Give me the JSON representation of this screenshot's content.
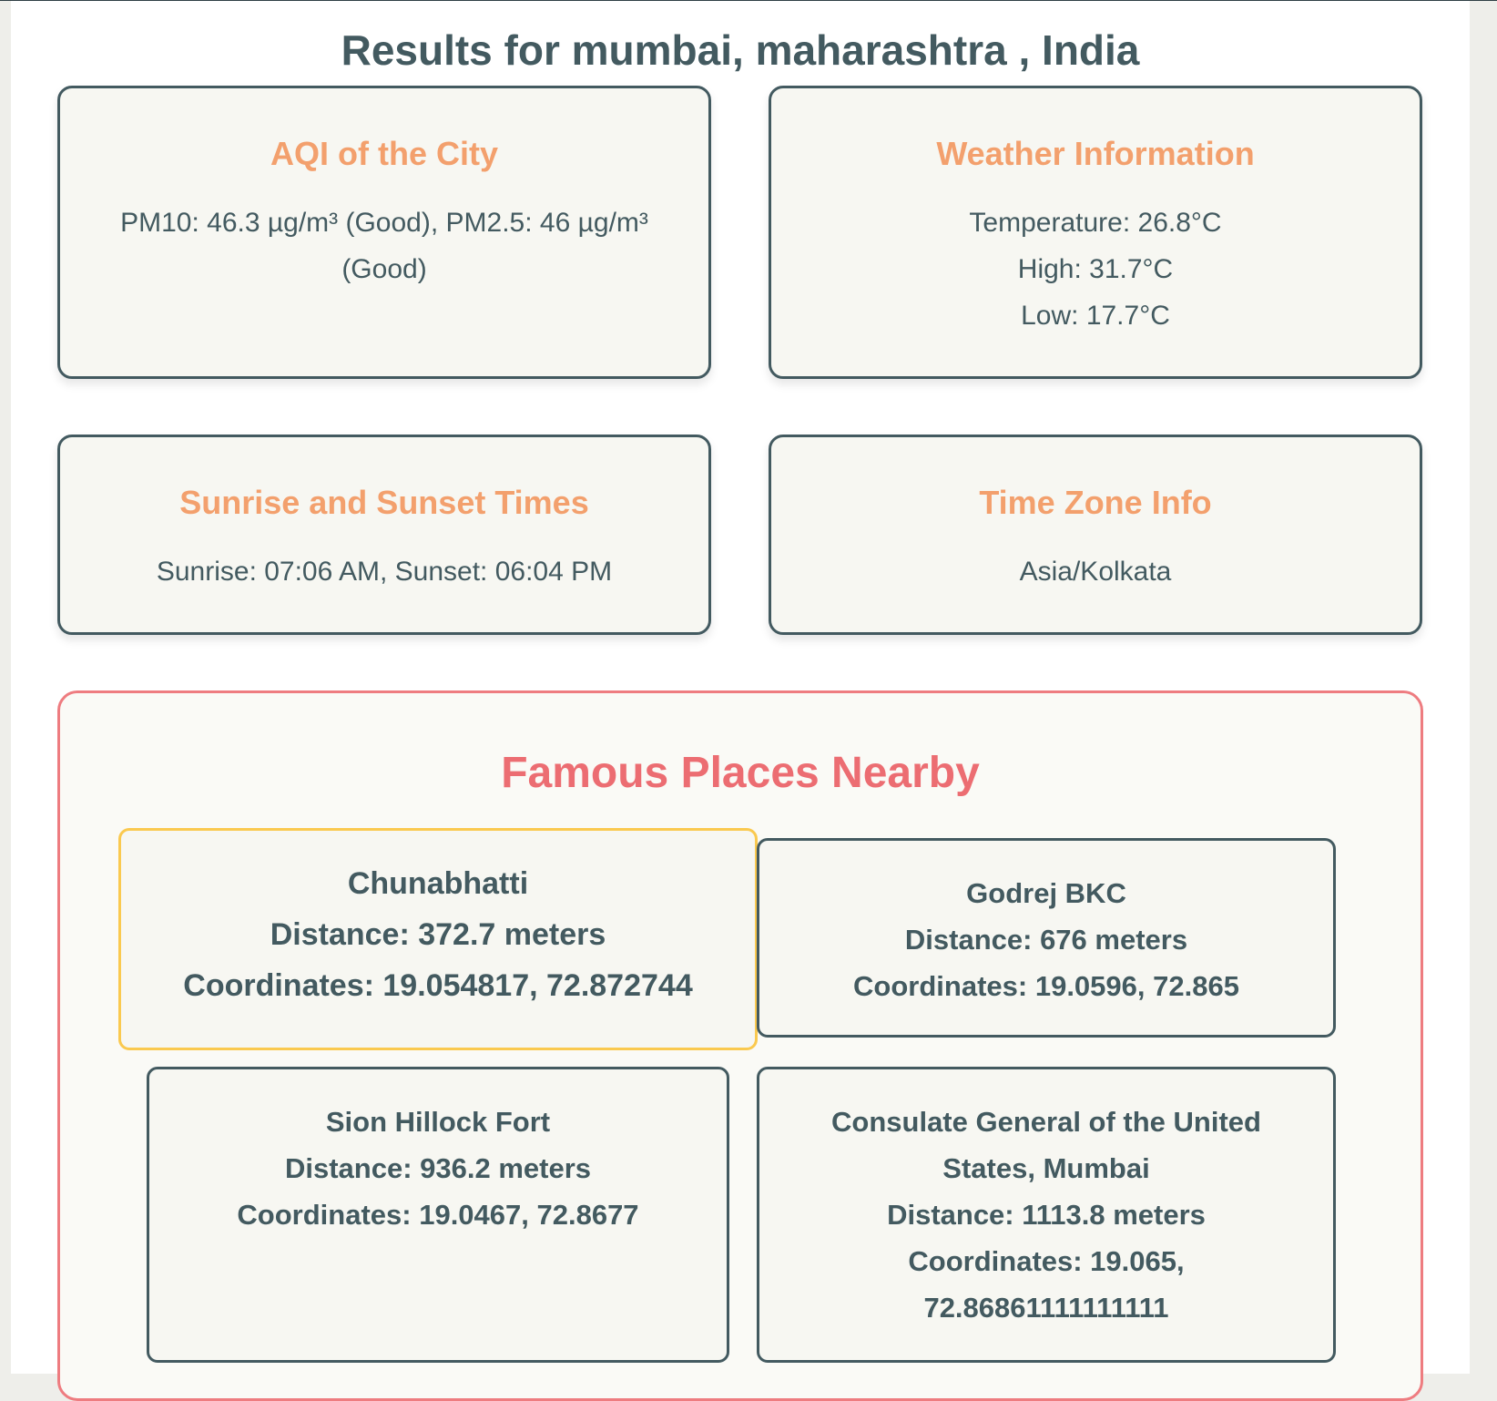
{
  "title": "Results for mumbai, maharashtra , India",
  "aqi": {
    "heading": "AQI of the City",
    "text": "PM10: 46.3 µg/m³ (Good), PM2.5: 46 µg/m³ (Good)"
  },
  "weather": {
    "heading": "Weather Information",
    "temperature": "Temperature: 26.8°C",
    "high": "High: 31.7°C",
    "low": "Low: 17.7°C"
  },
  "sun": {
    "heading": "Sunrise and Sunset Times",
    "text": "Sunrise: 07:06 AM, Sunset: 06:04 PM"
  },
  "timezone": {
    "heading": "Time Zone Info",
    "text": "Asia/Kolkata"
  },
  "places": {
    "heading": "Famous Places Nearby",
    "items": [
      {
        "name": "Chunabhatti",
        "distance": "Distance: 372.7 meters",
        "coordinates": "Coordinates: 19.054817, 72.872744"
      },
      {
        "name": "Godrej BKC",
        "distance": "Distance: 676 meters",
        "coordinates": "Coordinates: 19.0596, 72.865"
      },
      {
        "name": "Sion Hillock Fort",
        "distance": "Distance: 936.2 meters",
        "coordinates": "Coordinates: 19.0467, 72.8677"
      },
      {
        "name": "Consulate General of the United States, Mumbai",
        "distance": "Distance: 1113.8 meters",
        "coordinates": "Coordinates: 19.065, 72.86861111111111"
      }
    ]
  },
  "colors": {
    "heading_orange": "#f3a06d",
    "text_slate": "#435a60",
    "places_red": "#ec6d72",
    "highlight_yellow": "#fac94f"
  }
}
